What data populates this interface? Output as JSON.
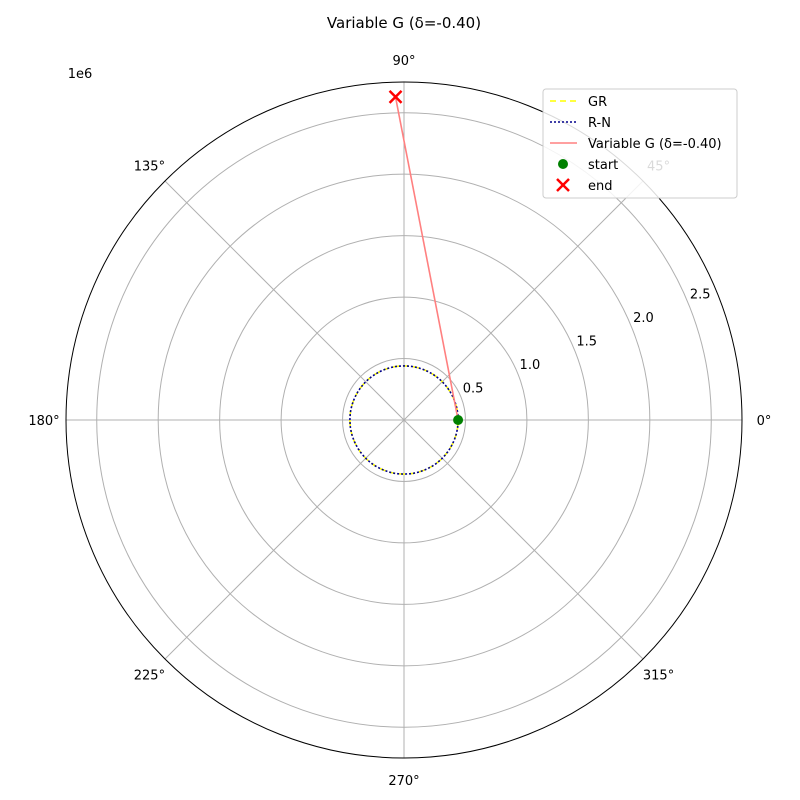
{
  "chart_data": {
    "type": "line",
    "coordinate_system": "polar",
    "title": "Variable G (δ=-0.40)",
    "radial_scale_label": "1e6",
    "radial_ticks": [
      0.5,
      1.0,
      1.5,
      2.0,
      2.5
    ],
    "radial_tick_labels": [
      "0.5",
      "1.0",
      "1.5",
      "2.0",
      "2.5"
    ],
    "r_max": 2.75,
    "radial_label_angle_deg": 22.5,
    "angular_ticks_deg": [
      0,
      45,
      90,
      135,
      180,
      225,
      270,
      315
    ],
    "angular_tick_labels": [
      "0°",
      "45°",
      "90°",
      "135°",
      "180°",
      "225°",
      "270°",
      "315°"
    ],
    "grid": true,
    "legend_position": "upper right",
    "series": [
      {
        "name": "GR",
        "style": "dashed",
        "color": "#ffff00",
        "kind": "curve",
        "theta_deg": [
          0,
          30,
          60,
          90,
          120,
          150,
          180,
          210,
          240,
          270,
          300,
          330,
          360
        ],
        "r": [
          0.44,
          0.44,
          0.44,
          0.44,
          0.44,
          0.44,
          0.44,
          0.44,
          0.44,
          0.44,
          0.44,
          0.44,
          0.44
        ]
      },
      {
        "name": "R-N",
        "style": "dotted",
        "color": "#00008b",
        "kind": "curve",
        "theta_deg": [
          0,
          30,
          60,
          90,
          120,
          150,
          180,
          210,
          240,
          270,
          300,
          330,
          360
        ],
        "r": [
          0.44,
          0.44,
          0.44,
          0.44,
          0.44,
          0.44,
          0.44,
          0.44,
          0.44,
          0.44,
          0.44,
          0.44,
          0.44
        ]
      },
      {
        "name": "Variable G (δ=-0.40)",
        "style": "solid",
        "color": "#ff8080",
        "kind": "curve",
        "theta_deg": [
          0,
          91.5
        ],
        "r": [
          0.44,
          2.63
        ]
      },
      {
        "name": "start",
        "color": "#008000",
        "kind": "marker-dot",
        "theta_deg": [
          0
        ],
        "r": [
          0.44
        ]
      },
      {
        "name": "end",
        "color": "#ff0000",
        "kind": "marker-x",
        "theta_deg": [
          91.5
        ],
        "r": [
          2.63
        ]
      }
    ]
  }
}
